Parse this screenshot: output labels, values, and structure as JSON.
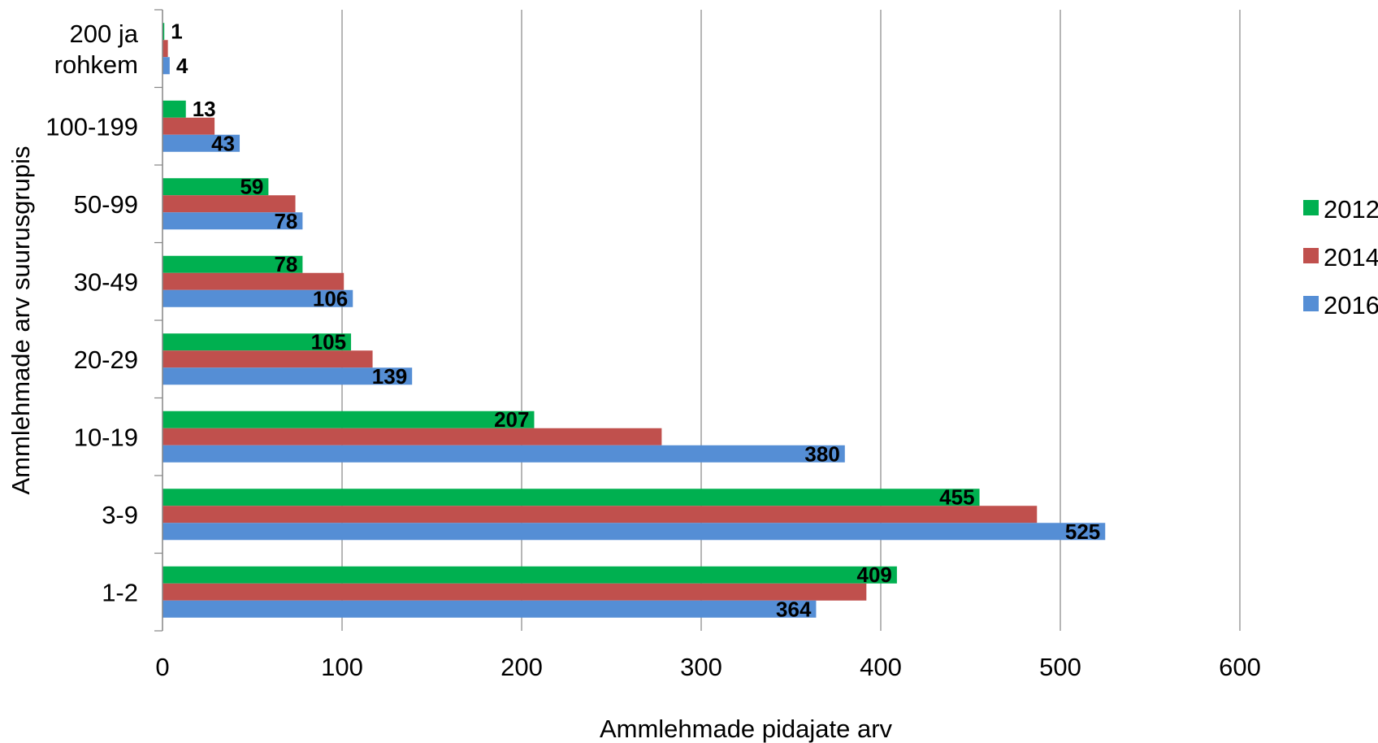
{
  "chart_data": {
    "type": "bar",
    "orientation": "horizontal",
    "categories": [
      "1-2",
      "3-9",
      "10-19",
      "20-29",
      "30-49",
      "50-99",
      "100-199",
      "200 ja rohkem"
    ],
    "series": [
      {
        "name": "2012",
        "color": "#00b050",
        "values": [
          409,
          455,
          207,
          105,
          78,
          59,
          13,
          1
        ],
        "labels": [
          "409",
          "455",
          "207",
          "105",
          "78",
          "59",
          "13",
          "1"
        ]
      },
      {
        "name": "2014",
        "color": "#c0504d",
        "values": [
          392,
          487,
          278,
          117,
          101,
          74,
          29,
          3
        ],
        "labels": []
      },
      {
        "name": "2016",
        "color": "#558ed5",
        "values": [
          364,
          525,
          380,
          139,
          106,
          78,
          43,
          4
        ],
        "labels": [
          "364",
          "525",
          "380",
          "139",
          "106",
          "78",
          "43",
          "4"
        ]
      }
    ],
    "xlabel": "Ammlehmade pidajate arv",
    "ylabel": "Ammlehmade arv suurusgrupis",
    "xlim": [
      0,
      600
    ],
    "xticks": [
      "0",
      "100",
      "200",
      "300",
      "400",
      "500",
      "600"
    ],
    "grid": "vertical",
    "legend": "right"
  }
}
